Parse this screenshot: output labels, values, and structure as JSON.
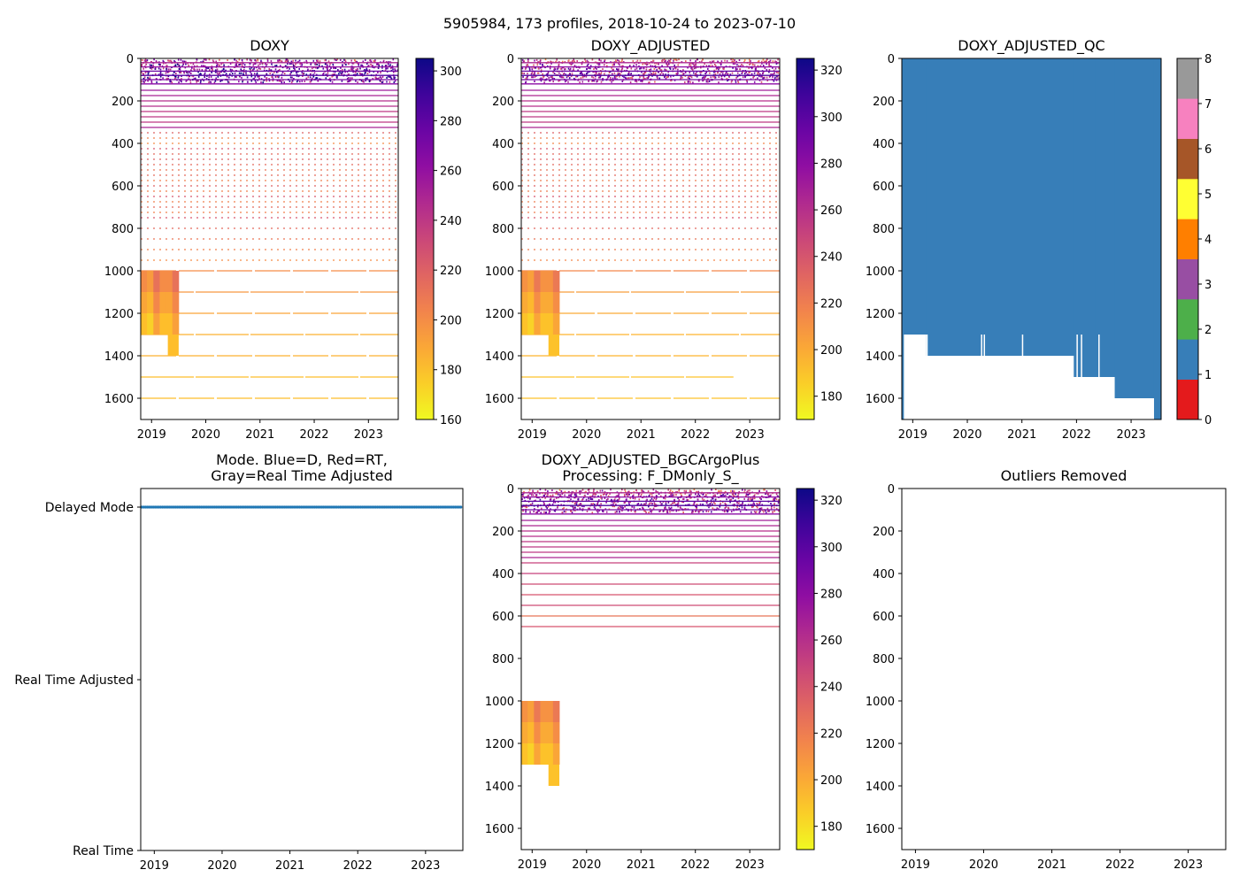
{
  "figure": {
    "suptitle": "5905984, 173 profiles, 2018-10-24 to 2023-07-10"
  },
  "chart_data": [
    {
      "id": "doxy",
      "type": "heatmap",
      "title": "DOXY",
      "xlabel": "",
      "ylabel": "",
      "xlim": [
        2018.8,
        2023.55
      ],
      "ylim": [
        1700,
        0
      ],
      "x_ticks": [
        2019,
        2020,
        2021,
        2022,
        2023
      ],
      "y_ticks": [
        0,
        200,
        400,
        600,
        800,
        1000,
        1200,
        1400,
        1600
      ],
      "colormap": "plasma_r",
      "colorbar": {
        "min": 160,
        "max": 305,
        "ticks": [
          160,
          180,
          200,
          220,
          240,
          260,
          280,
          300
        ]
      },
      "deep_block": {
        "x": [
          2018.8,
          2019.5
        ],
        "y": [
          1000,
          1300
        ],
        "extra_y": [
          1300,
          1400
        ],
        "extra_x": [
          2019.3,
          2019.5
        ],
        "value": 200
      },
      "level_lines": [
        {
          "depth": 20,
          "x_end": 2023.55,
          "value": 250
        },
        {
          "depth": 40,
          "x_end": 2023.55,
          "value": 260
        },
        {
          "depth": 60,
          "x_end": 2023.55,
          "value": 275
        },
        {
          "depth": 80,
          "x_end": 2023.55,
          "value": 285
        },
        {
          "depth": 100,
          "x_end": 2023.55,
          "value": 270
        },
        {
          "depth": 120,
          "x_end": 2023.55,
          "value": 265
        },
        {
          "depth": 150,
          "x_end": 2023.55,
          "value": 255
        },
        {
          "depth": 175,
          "x_end": 2023.55,
          "value": 250
        },
        {
          "depth": 200,
          "x_end": 2023.55,
          "value": 245
        },
        {
          "depth": 225,
          "x_end": 2023.55,
          "value": 245
        },
        {
          "depth": 250,
          "x_end": 2023.55,
          "value": 240
        },
        {
          "depth": 275,
          "x_end": 2023.55,
          "value": 240
        },
        {
          "depth": 300,
          "x_end": 2023.55,
          "value": 240
        },
        {
          "depth": 325,
          "x_end": 2023.55,
          "value": 250
        },
        {
          "depth": 350,
          "x_end": 2023.55,
          "value": 220
        },
        {
          "depth": 375,
          "x_end": 2023.55,
          "value": 205
        },
        {
          "depth": 400,
          "x_end": 2023.55,
          "value": 200
        },
        {
          "depth": 425,
          "x_end": 2023.55,
          "value": 225
        },
        {
          "depth": 450,
          "x_end": 2023.55,
          "value": 215
        },
        {
          "depth": 475,
          "x_end": 2023.55,
          "value": 220
        },
        {
          "depth": 500,
          "x_end": 2023.55,
          "value": 215
        },
        {
          "depth": 525,
          "x_end": 2023.55,
          "value": 210
        },
        {
          "depth": 550,
          "x_end": 2023.55,
          "value": 215
        },
        {
          "depth": 575,
          "x_end": 2023.55,
          "value": 205
        },
        {
          "depth": 600,
          "x_end": 2023.55,
          "value": 220
        },
        {
          "depth": 625,
          "x_end": 2023.55,
          "value": 205
        },
        {
          "depth": 650,
          "x_end": 2023.55,
          "value": 225
        },
        {
          "depth": 675,
          "x_end": 2023.55,
          "value": 205
        },
        {
          "depth": 700,
          "x_end": 2023.55,
          "value": 215
        },
        {
          "depth": 725,
          "x_end": 2023.55,
          "value": 205
        },
        {
          "depth": 750,
          "x_end": 2023.55,
          "value": 225
        },
        {
          "depth": 800,
          "x_end": 2023.55,
          "value": 215
        },
        {
          "depth": 850,
          "x_end": 2023.55,
          "value": 210
        },
        {
          "depth": 900,
          "x_end": 2023.55,
          "value": 205
        },
        {
          "depth": 950,
          "x_end": 2023.55,
          "value": 200
        },
        {
          "depth": 1000,
          "x_end": 2023.55,
          "value": 200
        },
        {
          "depth": 1100,
          "x_end": 2023.55,
          "value": 195
        },
        {
          "depth": 1200,
          "x_end": 2023.55,
          "value": 190
        },
        {
          "depth": 1300,
          "x_end": 2023.55,
          "value": 185
        },
        {
          "depth": 1400,
          "x_end": 2023.55,
          "value": 185
        },
        {
          "depth": 1500,
          "x_end": 2023.55,
          "value": 180
        },
        {
          "depth": 1600,
          "x_end": 2023.55,
          "value": 180
        }
      ]
    },
    {
      "id": "doxy_adjusted",
      "type": "heatmap",
      "title": "DOXY_ADJUSTED",
      "xlabel": "",
      "ylabel": "",
      "xlim": [
        2018.8,
        2023.55
      ],
      "ylim": [
        1700,
        0
      ],
      "x_ticks": [
        2019,
        2020,
        2021,
        2022,
        2023
      ],
      "y_ticks": [
        0,
        200,
        400,
        600,
        800,
        1000,
        1200,
        1400,
        1600
      ],
      "colormap": "plasma_r",
      "colorbar": {
        "min": 170,
        "max": 325,
        "ticks": [
          180,
          200,
          220,
          240,
          260,
          280,
          300,
          320
        ]
      },
      "deep_block": {
        "x": [
          2018.8,
          2019.5
        ],
        "y": [
          1000,
          1300
        ],
        "extra_y": [
          1300,
          1400
        ],
        "extra_x": [
          2019.3,
          2019.5
        ],
        "value": 210
      },
      "level_lines": [
        {
          "depth": 20,
          "x_end": 2023.55,
          "value": 265
        },
        {
          "depth": 40,
          "x_end": 2023.55,
          "value": 280
        },
        {
          "depth": 60,
          "x_end": 2023.55,
          "value": 295
        },
        {
          "depth": 80,
          "x_end": 2023.55,
          "value": 305
        },
        {
          "depth": 100,
          "x_end": 2023.55,
          "value": 290
        },
        {
          "depth": 120,
          "x_end": 2023.55,
          "value": 280
        },
        {
          "depth": 150,
          "x_end": 2023.55,
          "value": 270
        },
        {
          "depth": 175,
          "x_end": 2023.55,
          "value": 265
        },
        {
          "depth": 200,
          "x_end": 2023.55,
          "value": 260
        },
        {
          "depth": 225,
          "x_end": 2023.55,
          "value": 260
        },
        {
          "depth": 250,
          "x_end": 2023.55,
          "value": 255
        },
        {
          "depth": 275,
          "x_end": 2023.55,
          "value": 255
        },
        {
          "depth": 300,
          "x_end": 2023.55,
          "value": 255
        },
        {
          "depth": 325,
          "x_end": 2023.55,
          "value": 265
        },
        {
          "depth": 350,
          "x_end": 2023.55,
          "value": 235
        },
        {
          "depth": 375,
          "x_end": 2023.55,
          "value": 220
        },
        {
          "depth": 400,
          "x_end": 2023.55,
          "value": 215
        },
        {
          "depth": 425,
          "x_end": 2023.55,
          "value": 240
        },
        {
          "depth": 450,
          "x_end": 2023.55,
          "value": 230
        },
        {
          "depth": 475,
          "x_end": 2023.55,
          "value": 235
        },
        {
          "depth": 500,
          "x_end": 2023.55,
          "value": 230
        },
        {
          "depth": 525,
          "x_end": 2023.55,
          "value": 225
        },
        {
          "depth": 550,
          "x_end": 2023.55,
          "value": 230
        },
        {
          "depth": 575,
          "x_end": 2023.55,
          "value": 220
        },
        {
          "depth": 600,
          "x_end": 2023.55,
          "value": 235
        },
        {
          "depth": 625,
          "x_end": 2023.55,
          "value": 220
        },
        {
          "depth": 650,
          "x_end": 2023.55,
          "value": 240
        },
        {
          "depth": 675,
          "x_end": 2023.55,
          "value": 220
        },
        {
          "depth": 700,
          "x_end": 2023.55,
          "value": 230
        },
        {
          "depth": 725,
          "x_end": 2023.55,
          "value": 220
        },
        {
          "depth": 750,
          "x_end": 2023.55,
          "value": 240
        },
        {
          "depth": 800,
          "x_end": 2023.55,
          "value": 230
        },
        {
          "depth": 850,
          "x_end": 2023.55,
          "value": 225
        },
        {
          "depth": 900,
          "x_end": 2023.55,
          "value": 220
        },
        {
          "depth": 950,
          "x_end": 2023.55,
          "value": 215
        },
        {
          "depth": 1000,
          "x_end": 2023.55,
          "value": 215
        },
        {
          "depth": 1100,
          "x_end": 2023.55,
          "value": 205
        },
        {
          "depth": 1200,
          "x_end": 2023.55,
          "value": 200
        },
        {
          "depth": 1300,
          "x_end": 2023.55,
          "value": 195
        },
        {
          "depth": 1400,
          "x_end": 2023.55,
          "value": 195
        },
        {
          "depth": 1500,
          "x_end": 2022.7,
          "value": 190
        },
        {
          "depth": 1600,
          "x_end": 2023.55,
          "value": 190
        }
      ]
    },
    {
      "id": "doxy_adjusted_qc",
      "type": "heatmap",
      "title": "DOXY_ADJUSTED_QC",
      "xlabel": "",
      "ylabel": "",
      "xlim": [
        2018.8,
        2023.55
      ],
      "ylim": [
        1700,
        0
      ],
      "x_ticks": [
        2019,
        2020,
        2021,
        2022,
        2023
      ],
      "y_ticks": [
        0,
        200,
        400,
        600,
        800,
        1000,
        1200,
        1400,
        1600
      ],
      "qc_value": 1,
      "qc_color": "#377eb8",
      "qc_extent": {
        "x": [
          2018.8,
          2023.55
        ],
        "top_depth": 0,
        "steps": [
          {
            "x0": 2018.8,
            "x1": 2018.83,
            "bottom": 1700
          },
          {
            "x0": 2018.83,
            "x1": 2019.25,
            "bottom": 1300
          },
          {
            "x0": 2019.25,
            "x1": 2021.95,
            "bottom": 1400
          },
          {
            "x0": 2021.95,
            "x1": 2022.35,
            "bottom": 1500
          },
          {
            "x0": 2022.35,
            "x1": 2022.7,
            "bottom": 1500
          },
          {
            "x0": 2022.7,
            "x1": 2023.42,
            "bottom": 1600
          },
          {
            "x0": 2023.42,
            "x1": 2023.55,
            "bottom": 1700
          }
        ]
      },
      "colorbar": {
        "min": 0,
        "max": 8,
        "ticks": [
          0,
          1,
          2,
          3,
          4,
          5,
          6,
          7,
          8
        ],
        "colors": [
          "#e41a1c",
          "#377eb8",
          "#4daf4a",
          "#984ea3",
          "#ff7f00",
          "#ffff33",
          "#a65628",
          "#f781bf",
          "#999999"
        ]
      }
    },
    {
      "id": "mode",
      "type": "scatter",
      "title_line1": "Mode. Blue=D, Red=RT,",
      "title_line2": "Gray=Real Time Adjusted",
      "xlim": [
        2018.8,
        2023.55
      ],
      "x_ticks": [
        2019,
        2020,
        2021,
        2022,
        2023
      ],
      "y_categories": [
        "Real Time",
        "Real Time Adjusted",
        "Delayed Mode"
      ],
      "series": [
        {
          "name": "Delayed Mode",
          "x_range": [
            2018.82,
            2023.52
          ],
          "category": "Delayed Mode",
          "count": 173,
          "color": "#1f77b4"
        }
      ]
    },
    {
      "id": "bgc_argo_plus",
      "type": "heatmap",
      "title_line1": "DOXY_ADJUSTED_BGCArgoPlus",
      "title_line2": "Processing: F_DMonly_S_",
      "xlim": [
        2018.8,
        2023.55
      ],
      "ylim": [
        1700,
        0
      ],
      "x_ticks": [
        2019,
        2020,
        2021,
        2022,
        2023
      ],
      "y_ticks": [
        0,
        200,
        400,
        600,
        800,
        1000,
        1200,
        1400,
        1600
      ],
      "colormap": "plasma_r",
      "colorbar": {
        "min": 170,
        "max": 325,
        "ticks": [
          180,
          200,
          220,
          240,
          260,
          280,
          300,
          320
        ]
      },
      "deep_block": {
        "x": [
          2018.8,
          2019.5
        ],
        "y": [
          1000,
          1300
        ],
        "extra_y": [
          1300,
          1400
        ],
        "extra_x": [
          2019.3,
          2019.5
        ],
        "value": 210
      },
      "level_lines": [
        {
          "depth": 20,
          "x_end": 2023.55,
          "value": 265
        },
        {
          "depth": 40,
          "x_end": 2023.55,
          "value": 280
        },
        {
          "depth": 60,
          "x_end": 2023.55,
          "value": 300
        },
        {
          "depth": 80,
          "x_end": 2023.55,
          "value": 305
        },
        {
          "depth": 100,
          "x_end": 2023.55,
          "value": 290
        },
        {
          "depth": 120,
          "x_end": 2023.55,
          "value": 280
        },
        {
          "depth": 150,
          "x_end": 2023.55,
          "value": 270
        },
        {
          "depth": 175,
          "x_end": 2023.55,
          "value": 265
        },
        {
          "depth": 200,
          "x_end": 2023.55,
          "value": 260
        },
        {
          "depth": 225,
          "x_end": 2023.55,
          "value": 260
        },
        {
          "depth": 250,
          "x_end": 2023.55,
          "value": 255
        },
        {
          "depth": 275,
          "x_end": 2023.55,
          "value": 255
        },
        {
          "depth": 300,
          "x_end": 2023.55,
          "value": 255
        },
        {
          "depth": 325,
          "x_end": 2023.55,
          "value": 265
        },
        {
          "depth": 350,
          "x_end": 2023.55,
          "value": 250
        },
        {
          "depth": 400,
          "x_end": 2023.55,
          "value": 250
        },
        {
          "depth": 450,
          "x_end": 2023.55,
          "value": 245
        },
        {
          "depth": 500,
          "x_end": 2023.55,
          "value": 240
        },
        {
          "depth": 550,
          "x_end": 2023.55,
          "value": 245
        },
        {
          "depth": 600,
          "x_end": 2023.55,
          "value": 225
        },
        {
          "depth": 650,
          "x_end": 2023.55,
          "value": 240
        }
      ]
    },
    {
      "id": "outliers",
      "type": "scatter",
      "title": "Outliers Removed",
      "xlim": [
        2018.8,
        2023.55
      ],
      "ylim": [
        1700,
        0
      ],
      "x_ticks": [
        2019,
        2020,
        2021,
        2022,
        2023
      ],
      "y_ticks": [
        0,
        200,
        400,
        600,
        800,
        1000,
        1200,
        1400,
        1600
      ],
      "series": []
    }
  ]
}
